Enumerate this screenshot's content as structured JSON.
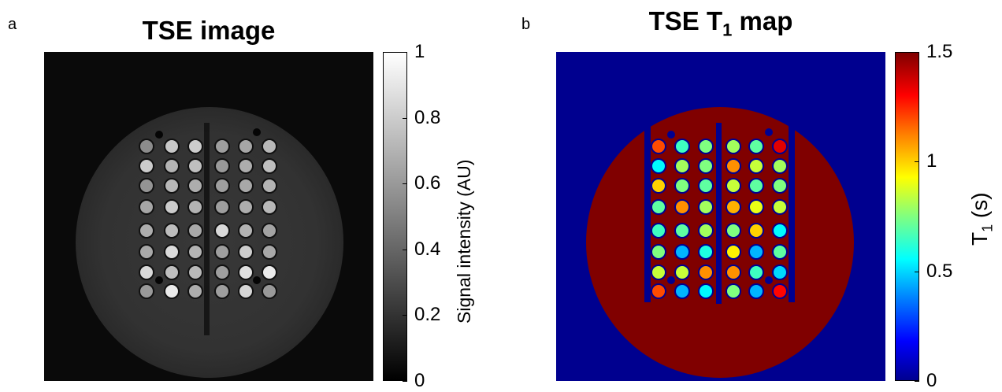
{
  "panel_a": {
    "letter": "a",
    "title": "TSE image",
    "colorbar": {
      "label": "Signal intensity (AU)",
      "ticks": [
        "1",
        "0.8",
        "0.6",
        "0.4",
        "0.2",
        "0"
      ],
      "tick_values": [
        1,
        0.8,
        0.6,
        0.4,
        0.2,
        0
      ]
    }
  },
  "panel_b": {
    "letter": "b",
    "title_main": "TSE T",
    "title_sub": "1",
    "title_rest": " map",
    "colorbar": {
      "label_main": "T",
      "label_sub": "1",
      "label_rest": "  (s)",
      "ticks": [
        "1.5",
        "1",
        "0.5",
        "0"
      ],
      "tick_values": [
        1.5,
        1,
        0.5,
        0
      ]
    }
  },
  "colors": {
    "gray_background": "#0a0a0a",
    "jet_background": "#00008f",
    "jet_phantom": "#800000"
  },
  "vials": {
    "columns": 6,
    "rows": 8,
    "gray_levels": [
      [
        0.55,
        0.78,
        0.8,
        0.62,
        0.65,
        0.72
      ],
      [
        0.8,
        0.7,
        0.75,
        0.6,
        0.68,
        0.75
      ],
      [
        0.58,
        0.72,
        0.68,
        0.62,
        0.66,
        0.7
      ],
      [
        0.65,
        0.8,
        0.7,
        0.62,
        0.68,
        0.72
      ],
      [
        0.68,
        0.74,
        0.66,
        0.85,
        0.7,
        0.64
      ],
      [
        0.66,
        0.86,
        0.7,
        0.62,
        0.8,
        0.66
      ],
      [
        0.85,
        0.75,
        0.72,
        0.62,
        0.88,
        0.92
      ],
      [
        0.6,
        0.92,
        0.68,
        0.62,
        0.84,
        0.6
      ]
    ],
    "t1_values": [
      [
        1.2,
        0.65,
        0.75,
        0.8,
        0.7,
        1.35
      ],
      [
        0.55,
        0.8,
        0.75,
        1.1,
        0.85,
        0.8
      ],
      [
        1.0,
        0.75,
        0.7,
        0.85,
        0.7,
        0.75
      ],
      [
        0.7,
        1.1,
        0.8,
        1.05,
        0.9,
        0.85
      ],
      [
        0.65,
        0.7,
        0.8,
        0.75,
        1.0,
        0.55
      ],
      [
        0.75,
        0.45,
        0.6,
        0.95,
        0.45,
        0.7
      ],
      [
        0.85,
        0.85,
        1.1,
        1.1,
        0.65,
        0.5
      ],
      [
        1.2,
        0.45,
        0.55,
        0.75,
        0.45,
        1.3
      ]
    ]
  }
}
